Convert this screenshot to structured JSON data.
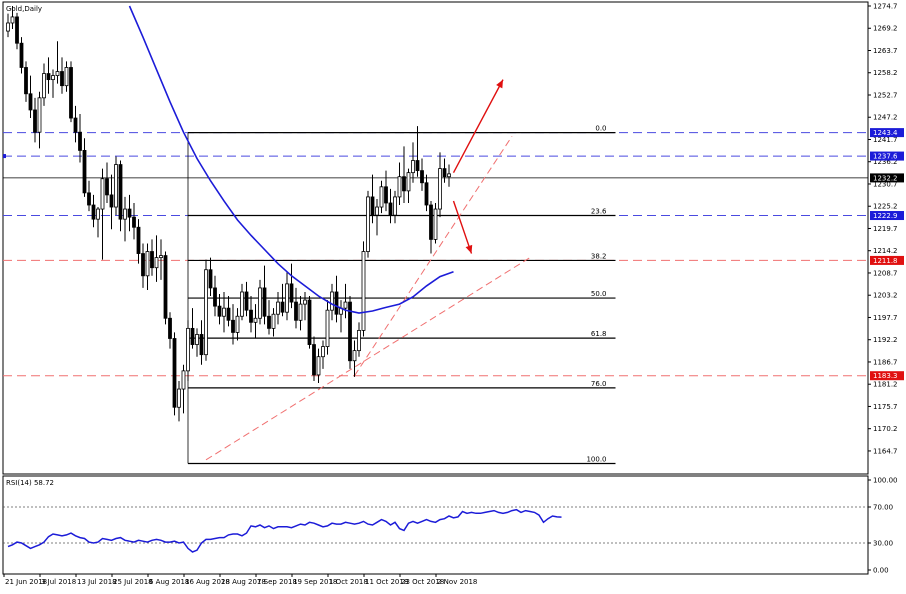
{
  "chart_data": {
    "type": "candlestick",
    "instrument": {
      "symbol": "Gold",
      "timeframe": "Daily",
      "symbol_label": "Gold,Daily"
    },
    "price_scale": {
      "ylim": [
        1159.0,
        1274.7
      ],
      "ticks": [
        "1274.7",
        "1269.2",
        "1263.7",
        "1258.2",
        "1252.7",
        "1247.2",
        "1241.7",
        "1236.2",
        "1230.7",
        "1225.2",
        "1219.7",
        "1214.2",
        "1208.7",
        "1203.2",
        "1197.7",
        "1192.2",
        "1186.7",
        "1181.2",
        "1175.7",
        "1170.2",
        "1164.7"
      ]
    },
    "x_axis": {
      "labels": [
        {
          "text": "21 Jun 2018",
          "bar": 0
        },
        {
          "text": "3 Jul 2018",
          "bar": 8
        },
        {
          "text": "13 Jul 2018",
          "bar": 16
        },
        {
          "text": "25 Jul 2018",
          "bar": 24
        },
        {
          "text": "6 Aug 2018",
          "bar": 32
        },
        {
          "text": "16 Aug 2018",
          "bar": 40
        },
        {
          "text": "28 Aug 2018",
          "bar": 48
        },
        {
          "text": "7 Sep 2018",
          "bar": 56
        },
        {
          "text": "19 Sep 2018",
          "bar": 64
        },
        {
          "text": "1 Oct 2018",
          "bar": 72
        },
        {
          "text": "11 Oct 2018",
          "bar": 80
        },
        {
          "text": "23 Oct 2018",
          "bar": 88
        },
        {
          "text": "2 Nov 2018",
          "bar": 96
        }
      ]
    },
    "candles": [
      [
        1268.5,
        1272.8,
        1267.0,
        1270.5
      ],
      [
        1270.5,
        1274.7,
        1269.0,
        1272.0
      ],
      [
        1272.0,
        1273.0,
        1264.0,
        1265.5
      ],
      [
        1265.5,
        1267.0,
        1258.0,
        1259.5
      ],
      [
        1259.5,
        1261.0,
        1251.0,
        1253.0
      ],
      [
        1253.0,
        1257.5,
        1247.0,
        1249.0
      ],
      [
        1249.0,
        1252.0,
        1241.0,
        1243.5
      ],
      [
        1243.5,
        1253.5,
        1239.5,
        1252.0
      ],
      [
        1252.0,
        1260.5,
        1250.0,
        1258.0
      ],
      [
        1258.0,
        1262.0,
        1253.0,
        1256.5
      ],
      [
        1256.5,
        1259.0,
        1252.0,
        1257.5
      ],
      [
        1257.5,
        1266.0,
        1255.5,
        1258.5
      ],
      [
        1258.5,
        1262.0,
        1253.0,
        1255.0
      ],
      [
        1255.0,
        1261.0,
        1253.5,
        1259.5
      ],
      [
        1259.5,
        1261.0,
        1246.0,
        1247.0
      ],
      [
        1247.0,
        1250.0,
        1241.0,
        1243.5
      ],
      [
        1243.5,
        1248.0,
        1236.0,
        1239.0
      ],
      [
        1239.0,
        1242.0,
        1227.5,
        1228.5
      ],
      [
        1228.5,
        1231.5,
        1224.0,
        1225.5
      ],
      [
        1225.5,
        1228.0,
        1220.0,
        1222.0
      ],
      [
        1222.0,
        1225.0,
        1217.5,
        1224.5
      ],
      [
        1224.5,
        1234.5,
        1212.0,
        1232.0
      ],
      [
        1232.0,
        1236.0,
        1226.0,
        1228.0
      ],
      [
        1228.0,
        1233.0,
        1219.5,
        1225.0
      ],
      [
        1225.0,
        1237.5,
        1223.0,
        1235.5
      ],
      [
        1235.5,
        1236.5,
        1219.0,
        1222.0
      ],
      [
        1222.0,
        1227.5,
        1216.5,
        1224.5
      ],
      [
        1224.5,
        1228.0,
        1219.0,
        1222.5
      ],
      [
        1222.5,
        1226.0,
        1217.0,
        1220.0
      ],
      [
        1220.0,
        1222.0,
        1211.0,
        1213.5
      ],
      [
        1213.5,
        1216.0,
        1205.0,
        1208.0
      ],
      [
        1208.0,
        1216.0,
        1204.5,
        1214.0
      ],
      [
        1214.0,
        1217.0,
        1208.0,
        1210.0
      ],
      [
        1210.0,
        1218.0,
        1206.5,
        1212.5
      ],
      [
        1212.5,
        1217.0,
        1207.0,
        1213.0
      ],
      [
        1213.0,
        1214.0,
        1196.0,
        1197.5
      ],
      [
        1197.5,
        1199.0,
        1190.0,
        1192.5
      ],
      [
        1192.5,
        1194.0,
        1173.5,
        1175.5
      ],
      [
        1175.5,
        1182.0,
        1172.0,
        1180.0
      ],
      [
        1180.0,
        1186.0,
        1174.0,
        1184.5
      ],
      [
        1184.5,
        1197.0,
        1182.0,
        1195.0
      ],
      [
        1195.0,
        1200.0,
        1190.0,
        1191.0
      ],
      [
        1191.0,
        1195.0,
        1188.0,
        1193.5
      ],
      [
        1193.5,
        1197.0,
        1186.0,
        1188.5
      ],
      [
        1188.5,
        1212.0,
        1187.0,
        1209.5
      ],
      [
        1209.5,
        1212.5,
        1203.0,
        1205.0
      ],
      [
        1205.0,
        1208.0,
        1198.0,
        1200.5
      ],
      [
        1200.5,
        1203.5,
        1196.0,
        1198.0
      ],
      [
        1198.0,
        1204.0,
        1194.0,
        1200.0
      ],
      [
        1200.0,
        1203.0,
        1195.5,
        1197.0
      ],
      [
        1197.0,
        1201.0,
        1191.0,
        1194.0
      ],
      [
        1194.0,
        1200.0,
        1192.0,
        1198.0
      ],
      [
        1198.0,
        1206.0,
        1197.0,
        1204.0
      ],
      [
        1204.0,
        1206.5,
        1198.0,
        1199.5
      ],
      [
        1199.5,
        1203.0,
        1194.0,
        1196.5
      ],
      [
        1196.5,
        1201.0,
        1192.5,
        1197.5
      ],
      [
        1197.5,
        1207.0,
        1196.0,
        1205.0
      ],
      [
        1205.0,
        1210.5,
        1196.0,
        1198.0
      ],
      [
        1198.0,
        1202.0,
        1193.5,
        1195.0
      ],
      [
        1195.0,
        1200.0,
        1193.0,
        1198.5
      ],
      [
        1198.5,
        1204.0,
        1196.0,
        1201.5
      ],
      [
        1201.5,
        1206.0,
        1198.0,
        1199.0
      ],
      [
        1199.0,
        1209.0,
        1197.0,
        1206.0
      ],
      [
        1206.0,
        1211.0,
        1200.0,
        1201.5
      ],
      [
        1201.5,
        1205.0,
        1195.0,
        1197.0
      ],
      [
        1197.0,
        1203.0,
        1194.5,
        1201.0
      ],
      [
        1201.0,
        1204.0,
        1197.0,
        1202.0
      ],
      [
        1202.0,
        1203.0,
        1190.0,
        1191.0
      ],
      [
        1191.0,
        1193.0,
        1182.0,
        1183.5
      ],
      [
        1183.5,
        1190.0,
        1181.5,
        1188.0
      ],
      [
        1188.0,
        1192.0,
        1185.0,
        1190.5
      ],
      [
        1190.5,
        1202.0,
        1188.5,
        1199.5
      ],
      [
        1199.5,
        1206.0,
        1197.0,
        1204.0
      ],
      [
        1204.0,
        1208.0,
        1196.5,
        1198.5
      ],
      [
        1198.5,
        1202.0,
        1194.0,
        1200.0
      ],
      [
        1200.0,
        1206.0,
        1197.5,
        1201.5
      ],
      [
        1201.5,
        1203.0,
        1185.0,
        1187.0
      ],
      [
        1187.0,
        1192.0,
        1183.0,
        1189.5
      ],
      [
        1189.5,
        1196.5,
        1188.0,
        1194.5
      ],
      [
        1194.5,
        1216.5,
        1193.0,
        1214.0
      ],
      [
        1214.0,
        1229.0,
        1212.5,
        1227.5
      ],
      [
        1227.5,
        1233.0,
        1221.0,
        1223.0
      ],
      [
        1223.0,
        1227.0,
        1218.0,
        1225.0
      ],
      [
        1225.0,
        1231.5,
        1223.5,
        1230.0
      ],
      [
        1230.0,
        1234.0,
        1224.0,
        1226.0
      ],
      [
        1226.0,
        1229.5,
        1221.0,
        1223.0
      ],
      [
        1223.0,
        1229.0,
        1221.0,
        1227.5
      ],
      [
        1227.5,
        1236.0,
        1225.5,
        1232.5
      ],
      [
        1232.5,
        1240.0,
        1226.0,
        1229.0
      ],
      [
        1229.0,
        1234.5,
        1226.0,
        1233.5
      ],
      [
        1233.5,
        1241.0,
        1231.0,
        1236.5
      ],
      [
        1236.5,
        1245.0,
        1232.5,
        1234.0
      ],
      [
        1234.0,
        1237.0,
        1229.0,
        1231.0
      ],
      [
        1231.0,
        1233.0,
        1224.0,
        1225.5
      ],
      [
        1225.5,
        1226.5,
        1213.5,
        1217.0
      ],
      [
        1217.0,
        1226.0,
        1216.0,
        1224.5
      ],
      [
        1224.5,
        1238.5,
        1222.5,
        1234.5
      ],
      [
        1234.5,
        1237.0,
        1231.0,
        1232.5
      ],
      [
        1232.5,
        1235.5,
        1230.0,
        1233.2
      ]
    ],
    "moving_average": [
      {
        "bar": 27,
        "v": 1274.7
      },
      {
        "bar": 30,
        "v": 1267.0
      },
      {
        "bar": 33,
        "v": 1259.0
      },
      {
        "bar": 36,
        "v": 1251.0
      },
      {
        "bar": 39,
        "v": 1243.5
      },
      {
        "bar": 42,
        "v": 1237.0
      },
      {
        "bar": 45,
        "v": 1231.5
      },
      {
        "bar": 48,
        "v": 1226.5
      },
      {
        "bar": 51,
        "v": 1221.8
      },
      {
        "bar": 54,
        "v": 1218.0
      },
      {
        "bar": 57,
        "v": 1214.5
      },
      {
        "bar": 60,
        "v": 1211.0
      },
      {
        "bar": 63,
        "v": 1208.0
      },
      {
        "bar": 66,
        "v": 1205.5
      },
      {
        "bar": 69,
        "v": 1203.0
      },
      {
        "bar": 72,
        "v": 1201.0
      },
      {
        "bar": 75,
        "v": 1199.5
      },
      {
        "bar": 78,
        "v": 1198.8
      },
      {
        "bar": 81,
        "v": 1199.3
      },
      {
        "bar": 84,
        "v": 1200.2
      },
      {
        "bar": 87,
        "v": 1201.0
      },
      {
        "bar": 90,
        "v": 1202.8
      },
      {
        "bar": 93,
        "v": 1205.5
      },
      {
        "bar": 96,
        "v": 1207.8
      },
      {
        "bar": 99,
        "v": 1209.0
      }
    ],
    "levels": {
      "horizontal_solid": [
        1232.2
      ],
      "blue_dashed": [
        1243.4,
        1237.6,
        1222.9
      ],
      "red_dashed": [
        1211.8,
        1183.3
      ]
    },
    "price_badges": [
      {
        "text": "1243.4",
        "v": 1243.4,
        "color": "#1c1cd8"
      },
      {
        "text": "1237.6",
        "v": 1237.6,
        "color": "#1c1cd8"
      },
      {
        "text": "1232.2",
        "v": 1232.2,
        "color": "#000000"
      },
      {
        "text": "1222.9",
        "v": 1222.9,
        "color": "#1c1cd8"
      },
      {
        "text": "1211.8",
        "v": 1211.8,
        "color": "#e01010"
      },
      {
        "text": "1183.3",
        "v": 1183.3,
        "color": "#e01010"
      }
    ],
    "fibonacci": {
      "bar_start": 40,
      "bar_end": 135,
      "label_bar": 133,
      "levels": [
        {
          "label": "0.0",
          "v": 1243.4
        },
        {
          "label": "23.6",
          "v": 1222.9
        },
        {
          "label": "38.2",
          "v": 1211.8
        },
        {
          "label": "50.0",
          "v": 1202.5
        },
        {
          "label": "61.8",
          "v": 1192.6
        },
        {
          "label": "76.0",
          "v": 1180.3
        },
        {
          "label": "100.0",
          "v": 1161.6
        }
      ]
    },
    "trendlines": [
      {
        "from": {
          "bar": 44,
          "v": 1162.5
        },
        "to": {
          "bar": 116,
          "v": 1212.5
        }
      },
      {
        "from": {
          "bar": 77,
          "v": 1183.3
        },
        "to": {
          "bar": 112,
          "v": 1242.5
        }
      }
    ],
    "arrows": [
      {
        "from": {
          "bar": 99,
          "v": 1233.5
        },
        "to": {
          "bar": 110,
          "v": 1256.5
        }
      },
      {
        "from": {
          "bar": 99,
          "v": 1226.5
        },
        "to": {
          "bar": 103,
          "v": 1213.5
        }
      }
    ],
    "rsi": {
      "label": "RSI(14) 58.72",
      "ylim": [
        0,
        100
      ],
      "ticks": [
        "100.00",
        "70.00",
        "30.00",
        "0.00"
      ],
      "levels": [
        70,
        30
      ],
      "values": [
        26,
        28,
        31,
        30,
        27,
        24,
        26,
        28,
        31,
        37,
        40,
        39,
        38,
        39,
        41,
        38,
        36,
        35,
        31,
        30,
        31,
        35,
        34,
        33,
        35,
        36,
        33,
        32,
        31,
        33,
        32,
        31,
        33,
        34,
        33,
        31,
        31,
        32,
        30,
        31,
        24,
        20,
        22,
        30,
        34,
        34,
        35,
        36,
        36,
        39,
        40,
        40,
        38,
        41,
        49,
        48,
        50,
        47,
        49,
        46,
        48,
        48,
        48,
        47,
        49,
        51,
        50,
        53,
        52,
        50,
        48,
        49,
        52,
        51,
        51,
        53,
        52,
        51,
        52,
        54,
        51,
        50,
        53,
        56,
        54,
        50,
        53,
        46,
        44,
        52,
        54,
        52,
        54,
        56,
        54,
        53,
        56,
        57,
        60,
        58,
        59,
        65,
        63,
        64,
        63,
        63,
        64,
        65,
        66,
        64,
        63,
        64,
        66,
        67,
        64,
        66,
        65,
        64,
        61,
        53,
        57,
        60,
        59,
        58.7
      ]
    }
  }
}
